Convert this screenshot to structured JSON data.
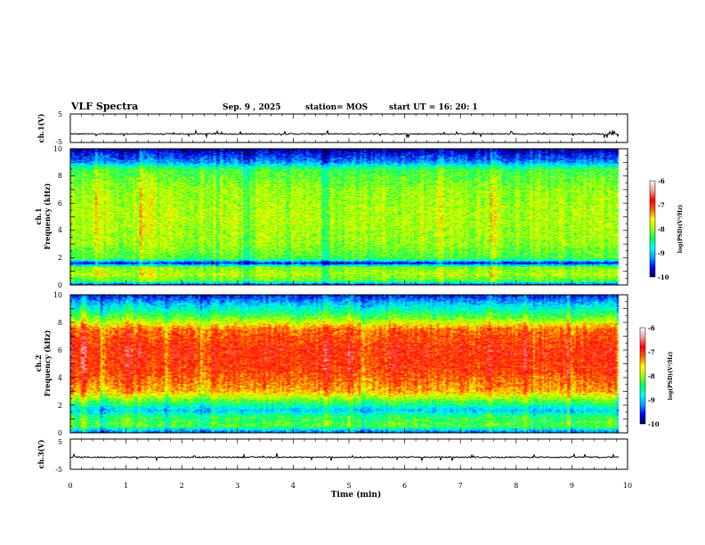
{
  "header": {
    "title": "VLF Spectra",
    "date": "Sep. 9  , 2025",
    "station": "station= MOS",
    "start": "start  UT  =   16: 20: 1"
  },
  "colors": {
    "colormap": [
      "#000060",
      "#0000ff",
      "#00a0ff",
      "#00ffff",
      "#00ff60",
      "#a0ff00",
      "#ffff00",
      "#ff6000",
      "#ff0000",
      "#ff9a9a",
      "#ffffff"
    ]
  },
  "chart_data": [
    {
      "type": "line",
      "ylabel": "ch.1(V)",
      "ylim": [
        -5,
        5
      ],
      "y_ticks": [
        "5",
        "-5"
      ],
      "xlim": [
        0,
        10
      ],
      "trace_level": -2,
      "trace_end_min": 9.85
    },
    {
      "type": "heatmap",
      "ylabel": [
        "ch.1",
        "Frequency (kHz)"
      ],
      "ylim": [
        0,
        10
      ],
      "y_ticks": [
        "0",
        "2",
        "4",
        "6",
        "8",
        "10"
      ],
      "xlim": [
        0,
        10
      ],
      "data_end_min": 9.85,
      "colorbar": {
        "label": "log(PSD)(V²/Hz)",
        "range": [
          -10,
          -6
        ],
        "ticks": [
          "-6",
          "-7",
          "-8",
          "-9",
          "-10"
        ]
      },
      "frequency_profile": [
        {
          "f": 0.0,
          "v": -9.6
        },
        {
          "f": 0.3,
          "v": -8.2
        },
        {
          "f": 0.8,
          "v": -7.9
        },
        {
          "f": 1.3,
          "v": -8.1
        },
        {
          "f": 1.6,
          "v": -9.7
        },
        {
          "f": 1.9,
          "v": -8.3
        },
        {
          "f": 3.0,
          "v": -8.0
        },
        {
          "f": 5.0,
          "v": -7.9
        },
        {
          "f": 7.0,
          "v": -8.0
        },
        {
          "f": 8.5,
          "v": -8.3
        },
        {
          "f": 9.0,
          "v": -9.2
        },
        {
          "f": 10.0,
          "v": -9.9
        }
      ]
    },
    {
      "type": "heatmap",
      "ylabel": [
        "ch.2",
        "Frequency (kHz)"
      ],
      "ylim": [
        0,
        10
      ],
      "y_ticks": [
        "0",
        "2",
        "4",
        "6",
        "8",
        "10"
      ],
      "xlim": [
        0,
        10
      ],
      "data_end_min": 9.85,
      "colorbar": {
        "label": "log(PSD)(V²/Hz)",
        "range": [
          -10,
          -6
        ],
        "ticks": [
          "-6",
          "-7",
          "-8",
          "-9",
          "-10"
        ]
      },
      "frequency_profile": [
        {
          "f": 0.0,
          "v": -9.4
        },
        {
          "f": 0.5,
          "v": -8.2
        },
        {
          "f": 1.2,
          "v": -8.4
        },
        {
          "f": 1.6,
          "v": -9.0
        },
        {
          "f": 2.2,
          "v": -8.3
        },
        {
          "f": 3.0,
          "v": -7.4
        },
        {
          "f": 4.5,
          "v": -7.0
        },
        {
          "f": 6.0,
          "v": -6.9
        },
        {
          "f": 7.5,
          "v": -7.2
        },
        {
          "f": 8.2,
          "v": -8.0
        },
        {
          "f": 9.0,
          "v": -8.7
        },
        {
          "f": 10.0,
          "v": -9.6
        }
      ]
    },
    {
      "type": "line",
      "ylabel": "ch.3(V)",
      "ylim": [
        -5,
        5
      ],
      "y_ticks": [
        "5",
        "-5"
      ],
      "xlim": [
        0,
        10
      ],
      "trace_level": -1,
      "trace_end_min": 9.85,
      "xlabel": "Time  (min)",
      "x_ticks": [
        "0",
        "1",
        "2",
        "3",
        "4",
        "5",
        "6",
        "7",
        "8",
        "9",
        "10"
      ]
    }
  ]
}
